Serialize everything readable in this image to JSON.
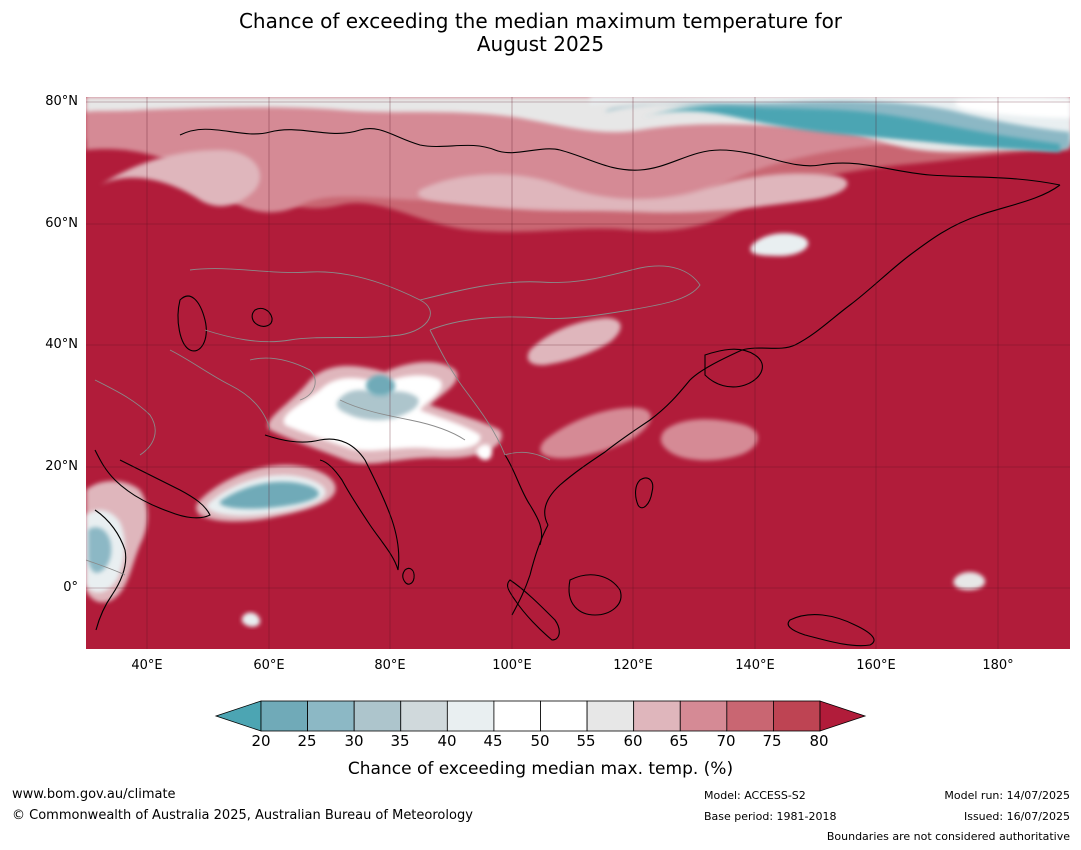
{
  "title": {
    "line1": "Chance of exceeding the median maximum temperature for",
    "line2": "August 2025"
  },
  "map": {
    "background_color": "#b11c3a",
    "latitude_labels": [
      "80°N",
      "60°N",
      "40°N",
      "20°N",
      "0°"
    ],
    "longitude_labels": [
      "40°E",
      "60°E",
      "80°E",
      "100°E",
      "120°E",
      "140°E",
      "160°E",
      "180°"
    ]
  },
  "colorbar": {
    "ticks": [
      "20",
      "25",
      "30",
      "35",
      "40",
      "45",
      "50",
      "55",
      "60",
      "65",
      "70",
      "75",
      "80"
    ],
    "colors": [
      "#4ca5b3",
      "#70aab8",
      "#8cb8c5",
      "#adc5cc",
      "#d0d9dc",
      "#e9eff1",
      "#ffffff",
      "#ffffff",
      "#e7e7e7",
      "#dfb6bc",
      "#d58a95",
      "#c96672",
      "#be4453",
      "#b11c3a"
    ],
    "label": "Chance of exceeding median max. temp. (%)"
  },
  "footer": {
    "url": "www.bom.gov.au/climate",
    "copyright": "© Commonwealth of Australia 2025, Australian Bureau of Meteorology",
    "model": "Model: ACCESS-S2",
    "base_period": "Base period: 1981-2018",
    "model_run": "Model run: 14/07/2025",
    "issued": "Issued: 16/07/2025",
    "disclaimer": "Boundaries are not considered authoritative"
  }
}
